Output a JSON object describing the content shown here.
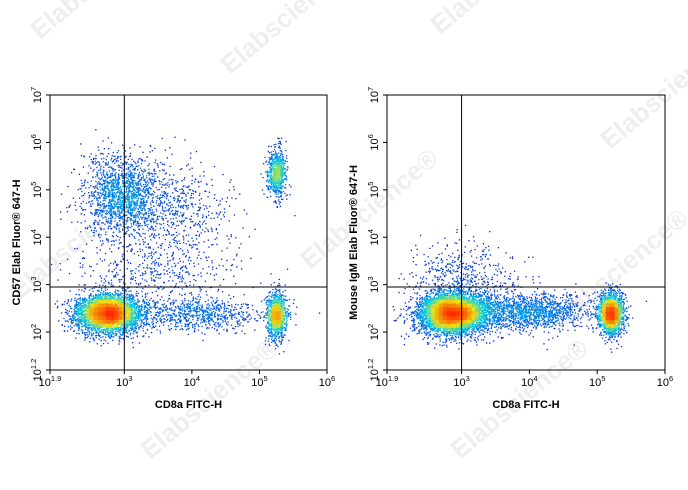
{
  "watermark": {
    "text": "Elabscience®"
  },
  "colors": {
    "low": "#0a10c8",
    "mid": "#00d0e0",
    "midhigh": "#f0e010",
    "high": "#ff2a00",
    "gate": "#000000"
  },
  "chart_data": [
    {
      "type": "scatter",
      "subtype": "flow-cytometry-density-dot-plot",
      "xlabel": "CD8a FITC-H",
      "ylabel": "CD57 Elab Fluor® 647-H",
      "x_scale": "log10",
      "y_scale": "log10",
      "xlim": [
        1.9,
        6
      ],
      "ylim": [
        1.2,
        7
      ],
      "x_ticks": [
        {
          "base": "10",
          "exp": "1.9",
          "value": 1.9
        },
        {
          "base": "10",
          "exp": "3",
          "value": 3
        },
        {
          "base": "10",
          "exp": "4",
          "value": 4
        },
        {
          "base": "10",
          "exp": "5",
          "value": 5
        },
        {
          "base": "10",
          "exp": "6",
          "value": 6
        }
      ],
      "y_ticks": [
        {
          "base": "10",
          "exp": "1.2",
          "value": 1.2
        },
        {
          "base": "10",
          "exp": "2",
          "value": 2
        },
        {
          "base": "10",
          "exp": "3",
          "value": 3
        },
        {
          "base": "10",
          "exp": "4",
          "value": 4
        },
        {
          "base": "10",
          "exp": "5",
          "value": 5
        },
        {
          "base": "10",
          "exp": "6",
          "value": 6
        },
        {
          "base": "10",
          "exp": "7",
          "value": 7
        }
      ],
      "quadrant_gate": {
        "x": 3.0,
        "y": 2.95
      },
      "populations": [
        {
          "x": 2.75,
          "y": 2.4,
          "sx": 0.24,
          "sy": 0.21,
          "weight": 0.42
        },
        {
          "x": 2.95,
          "y": 4.9,
          "sx": 0.3,
          "sy": 0.45,
          "weight": 0.17
        },
        {
          "x": 3.7,
          "y": 4.6,
          "sx": 0.45,
          "sy": 0.5,
          "weight": 0.07
        },
        {
          "x": 5.25,
          "y": 2.35,
          "sx": 0.07,
          "sy": 0.25,
          "weight": 0.12
        },
        {
          "x": 5.25,
          "y": 5.35,
          "sx": 0.07,
          "sy": 0.25,
          "weight": 0.08
        },
        {
          "x": 4.0,
          "y": 2.4,
          "sx": 0.55,
          "sy": 0.18,
          "weight": 0.09
        },
        {
          "x": 3.5,
          "y": 3.3,
          "sx": 0.6,
          "sy": 0.4,
          "weight": 0.05
        }
      ]
    },
    {
      "type": "scatter",
      "subtype": "flow-cytometry-density-dot-plot",
      "xlabel": "CD8a FITC-H",
      "ylabel": "Mouse IgM Elab Fluor® 647-H",
      "x_scale": "log10",
      "y_scale": "log10",
      "xlim": [
        1.9,
        6
      ],
      "ylim": [
        1.2,
        7
      ],
      "x_ticks": [
        {
          "base": "10",
          "exp": "1.9",
          "value": 1.9
        },
        {
          "base": "10",
          "exp": "3",
          "value": 3
        },
        {
          "base": "10",
          "exp": "4",
          "value": 4
        },
        {
          "base": "10",
          "exp": "5",
          "value": 5
        },
        {
          "base": "10",
          "exp": "6",
          "value": 6
        }
      ],
      "y_ticks": [
        {
          "base": "10",
          "exp": "1.2",
          "value": 1.2
        },
        {
          "base": "10",
          "exp": "2",
          "value": 2
        },
        {
          "base": "10",
          "exp": "3",
          "value": 3
        },
        {
          "base": "10",
          "exp": "4",
          "value": 4
        },
        {
          "base": "10",
          "exp": "5",
          "value": 5
        },
        {
          "base": "10",
          "exp": "6",
          "value": 6
        },
        {
          "base": "10",
          "exp": "7",
          "value": 7
        }
      ],
      "quadrant_gate": {
        "x": 3.0,
        "y": 2.95
      },
      "populations": [
        {
          "x": 2.85,
          "y": 2.4,
          "sx": 0.26,
          "sy": 0.22,
          "weight": 0.55
        },
        {
          "x": 3.9,
          "y": 2.45,
          "sx": 0.5,
          "sy": 0.2,
          "weight": 0.18
        },
        {
          "x": 5.2,
          "y": 2.4,
          "sx": 0.09,
          "sy": 0.22,
          "weight": 0.22
        },
        {
          "x": 3.0,
          "y": 3.2,
          "sx": 0.4,
          "sy": 0.35,
          "weight": 0.05
        }
      ]
    }
  ]
}
